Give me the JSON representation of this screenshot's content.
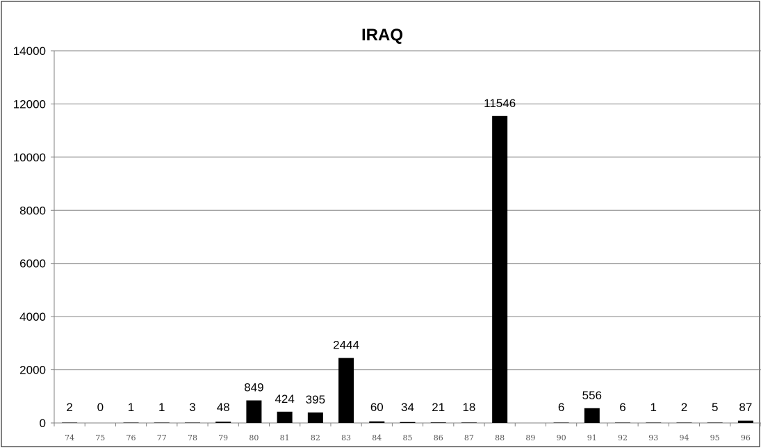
{
  "chart_data": {
    "type": "bar",
    "title": "IRAQ",
    "xlabel": "",
    "ylabel": "",
    "categories": [
      "74",
      "75",
      "76",
      "77",
      "78",
      "79",
      "80",
      "81",
      "82",
      "83",
      "84",
      "85",
      "86",
      "87",
      "88",
      "89",
      "90",
      "91",
      "92",
      "93",
      "94",
      "95",
      "96"
    ],
    "values": [
      2,
      0,
      1,
      1,
      3,
      48,
      849,
      424,
      395,
      2444,
      60,
      34,
      21,
      18,
      11546,
      null,
      6,
      556,
      6,
      1,
      2,
      5,
      87
    ],
    "data_labels": [
      "2",
      "0",
      "1",
      "1",
      "3",
      "48",
      "849",
      "424",
      "395",
      "2444",
      "60",
      "34",
      "21",
      "18",
      "11546",
      "",
      "6",
      "556",
      "6",
      "1",
      "2",
      "5",
      "87"
    ],
    "ylim": [
      0,
      14000
    ],
    "yticks": [
      0,
      2000,
      4000,
      6000,
      8000,
      10000,
      12000,
      14000
    ],
    "ytick_labels": [
      "0",
      "2000",
      "4000",
      "6000",
      "8000",
      "10000",
      "12000",
      "14000"
    ],
    "grid": true,
    "legend": "none",
    "colors": {
      "bar": "#000000",
      "grid": "#808080",
      "axis": "#808080",
      "background": "#ffffff"
    }
  }
}
